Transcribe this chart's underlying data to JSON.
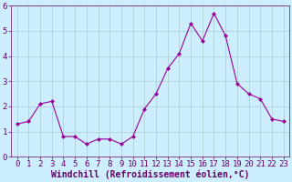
{
  "x": [
    0,
    1,
    2,
    3,
    4,
    5,
    6,
    7,
    8,
    9,
    10,
    11,
    12,
    13,
    14,
    15,
    16,
    17,
    18,
    19,
    20,
    21,
    22,
    23
  ],
  "y": [
    1.3,
    1.4,
    2.1,
    2.2,
    0.8,
    0.8,
    0.5,
    0.7,
    0.7,
    0.5,
    0.8,
    1.9,
    2.5,
    3.5,
    4.1,
    5.3,
    4.6,
    5.7,
    4.8,
    2.9,
    2.5,
    2.3,
    1.5,
    1.4
  ],
  "line_color": "#990099",
  "marker": "D",
  "marker_size": 2,
  "bg_color": "#cceeff",
  "grid_color": "#aacccc",
  "xlabel": "Windchill (Refroidissement éolien,°C)",
  "ylabel": "",
  "title": "",
  "xlim": [
    -0.5,
    23.5
  ],
  "ylim": [
    0,
    6
  ],
  "yticks": [
    0,
    1,
    2,
    3,
    4,
    5,
    6
  ],
  "xticks": [
    0,
    1,
    2,
    3,
    4,
    5,
    6,
    7,
    8,
    9,
    10,
    11,
    12,
    13,
    14,
    15,
    16,
    17,
    18,
    19,
    20,
    21,
    22,
    23
  ],
  "xlabel_fontsize": 7,
  "tick_fontsize": 6.5,
  "label_color": "#660066",
  "line_width": 0.8
}
